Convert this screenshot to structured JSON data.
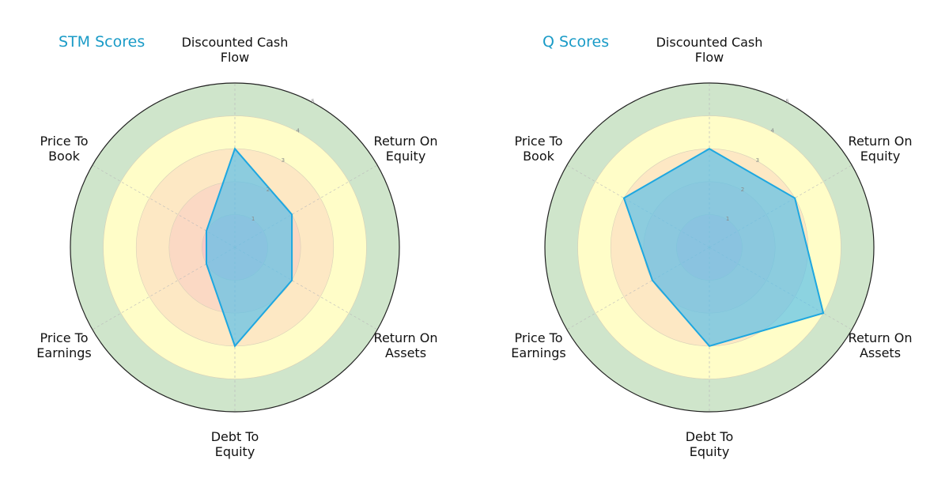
{
  "chart_data": [
    {
      "type": "radar",
      "title": "STM Scores",
      "categories": [
        "Discounted Cash Flow",
        "Return On Equity",
        "Return On Assets",
        "Debt To Equity",
        "Price To Earnings",
        "Price To Book"
      ],
      "values": [
        3,
        2,
        2,
        3,
        1,
        1
      ],
      "rlim": [
        0,
        5
      ],
      "rticks": [
        1,
        2,
        3,
        4,
        5
      ],
      "band_colors": [
        "#f8c8c8",
        "#fbd9c4",
        "#fde8c4",
        "#fffdc8",
        "#cfe5cb"
      ],
      "fill_color": "#5bc0ea",
      "line_color": "#1ea7e0"
    },
    {
      "type": "radar",
      "title": "Q Scores",
      "categories": [
        "Discounted Cash Flow",
        "Return On Equity",
        "Return On Assets",
        "Debt To Equity",
        "Price To Earnings",
        "Price To Book"
      ],
      "values": [
        3,
        3,
        4,
        3,
        2,
        3
      ],
      "rlim": [
        0,
        5
      ],
      "rticks": [
        1,
        2,
        3,
        4,
        5
      ],
      "band_colors": [
        "#f8c8c8",
        "#fbd9c4",
        "#fde8c4",
        "#fffdc8",
        "#cfe5cb"
      ],
      "fill_color": "#5bc0ea",
      "line_color": "#1ea7e0"
    }
  ],
  "labels": {
    "dcf": [
      "Discounted Cash",
      "Flow"
    ],
    "roe": [
      "Return On",
      "Equity"
    ],
    "roa": [
      "Return On",
      "Assets"
    ],
    "dte": [
      "Debt To",
      "Equity"
    ],
    "pte": [
      "Price To",
      "Earnings"
    ],
    "ptb": [
      "Price To",
      "Book"
    ]
  },
  "titles": {
    "left": "STM Scores",
    "right": "Q Scores"
  }
}
